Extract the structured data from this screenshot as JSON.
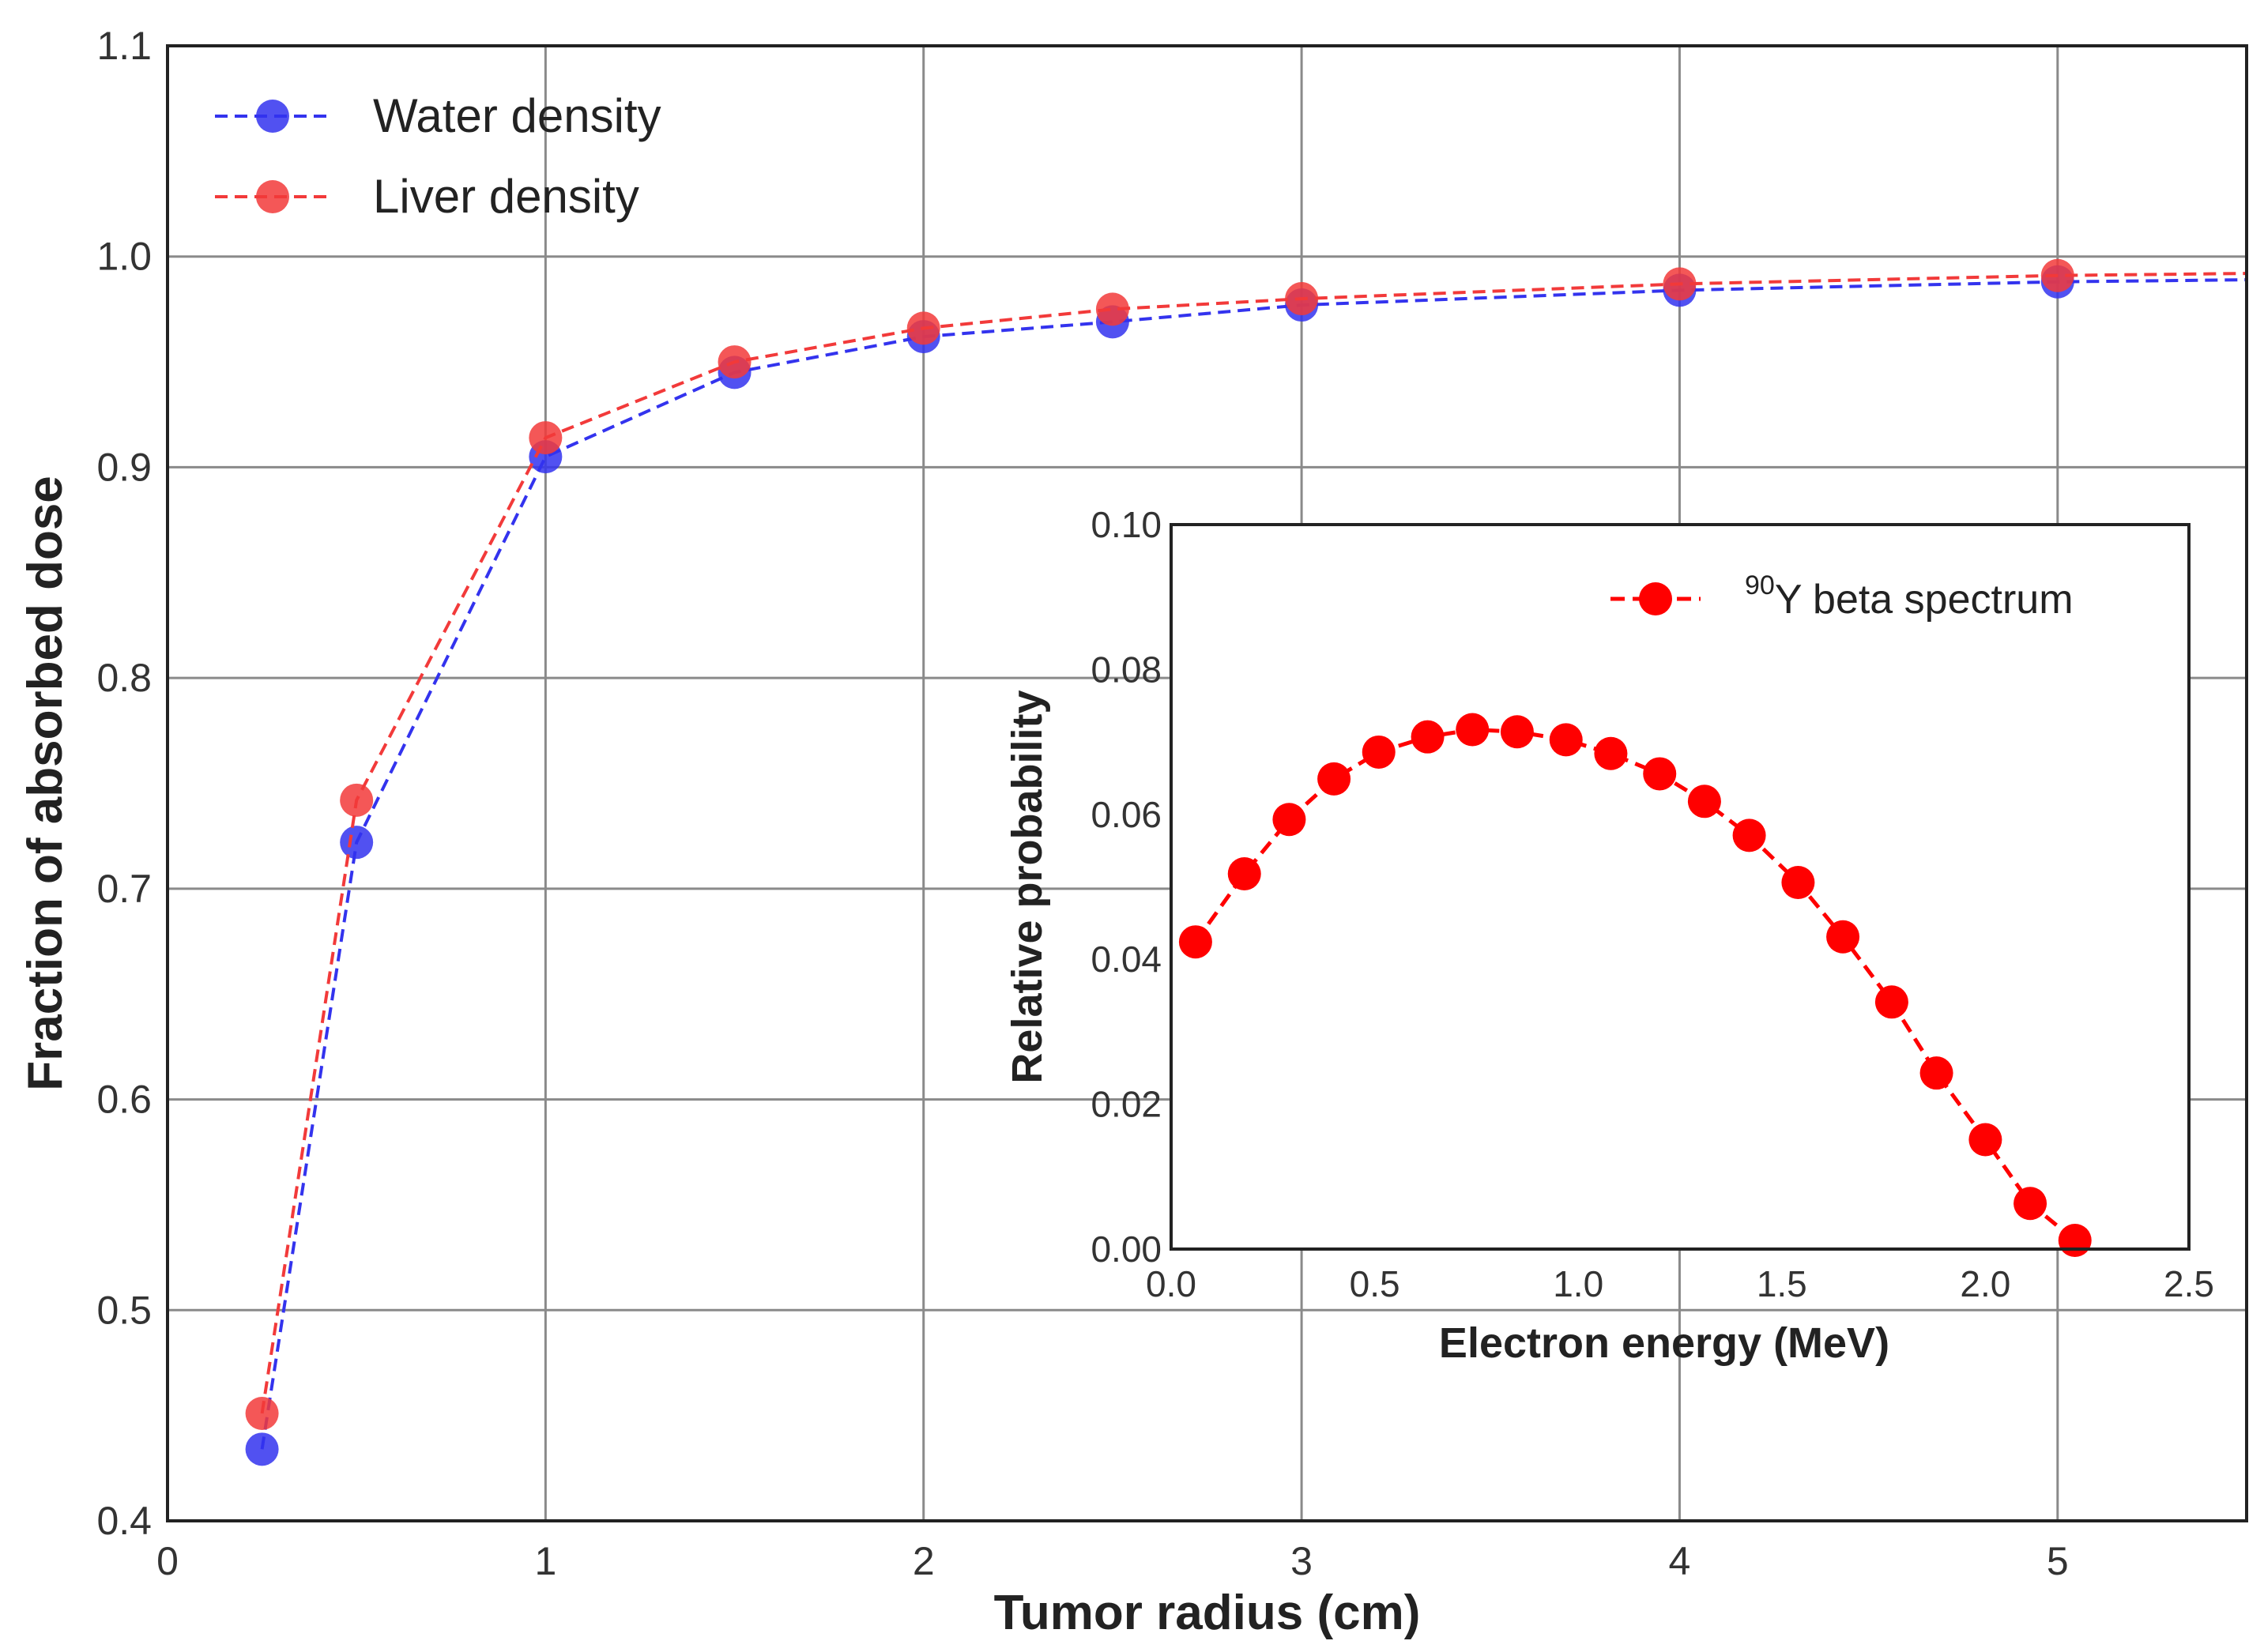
{
  "chart_data": [
    {
      "type": "line",
      "id": "main",
      "title": "",
      "xlabel": "Tumor radius (cm)",
      "ylabel": "Fraction of absorbed dose",
      "xlim": [
        0,
        5.5
      ],
      "ylim": [
        0.4,
        1.1
      ],
      "xticks": [
        0,
        1,
        2,
        3,
        4,
        5
      ],
      "xtick_labels": [
        "0",
        "1",
        "2",
        "3",
        "4",
        "5"
      ],
      "yticks": [
        0.4,
        0.5,
        0.6,
        0.7,
        0.8,
        0.9,
        1.0,
        1.1
      ],
      "ytick_labels": [
        "0.4",
        "0.5",
        "0.6",
        "0.7",
        "0.8",
        "0.9",
        "1.0",
        "1.1"
      ],
      "grid": true,
      "legend_position": "top-left",
      "x": [
        0.25,
        0.5,
        1,
        1.5,
        2,
        2.5,
        3,
        4,
        5,
        5.5
      ],
      "series": [
        {
          "name": "Water density",
          "color": "#3333ee",
          "values": [
            0.434,
            0.722,
            0.905,
            0.945,
            0.962,
            0.969,
            0.977,
            0.984,
            0.988,
            0.989
          ],
          "markers": [
            true,
            true,
            true,
            true,
            true,
            true,
            true,
            true,
            true,
            false
          ]
        },
        {
          "name": "Liver density",
          "color": "#f23a3a",
          "values": [
            0.451,
            0.742,
            0.914,
            0.95,
            0.966,
            0.975,
            0.98,
            0.987,
            0.991,
            0.992
          ],
          "markers": [
            true,
            true,
            true,
            true,
            true,
            true,
            true,
            true,
            true,
            false
          ]
        }
      ]
    },
    {
      "type": "line",
      "id": "inset",
      "title": "",
      "xlabel": "Electron energy (MeV)",
      "ylabel": "Relative probability",
      "xlim": [
        0,
        2.5
      ],
      "ylim": [
        0,
        0.1
      ],
      "xticks": [
        0,
        0.5,
        1.0,
        1.5,
        2.0,
        2.5
      ],
      "xtick_labels": [
        "0.0",
        "0.5",
        "1.0",
        "1.5",
        "2.0",
        "2.5"
      ],
      "yticks": [
        0,
        0.02,
        0.04,
        0.06,
        0.08,
        0.1
      ],
      "ytick_labels": [
        "0.00",
        "0.02",
        "0.04",
        "0.06",
        "0.08",
        "0.10"
      ],
      "grid": false,
      "legend_position": "top-right",
      "legend_superscript": "90",
      "legend_text": "Y beta spectrum",
      "x": [
        0.06,
        0.18,
        0.29,
        0.4,
        0.51,
        0.63,
        0.74,
        0.85,
        0.97,
        1.08,
        1.2,
        1.31,
        1.42,
        1.54,
        1.65,
        1.77,
        1.88,
        2.0,
        2.11,
        2.22
      ],
      "series": [
        {
          "name": "90Y beta spectrum",
          "color": "#ff0000",
          "values": [
            0.0424,
            0.0518,
            0.0593,
            0.0649,
            0.0686,
            0.0707,
            0.0717,
            0.0714,
            0.0703,
            0.0684,
            0.0656,
            0.0618,
            0.0571,
            0.0506,
            0.0431,
            0.0341,
            0.0243,
            0.0151,
            0.0063,
            0.0012
          ]
        }
      ]
    }
  ]
}
